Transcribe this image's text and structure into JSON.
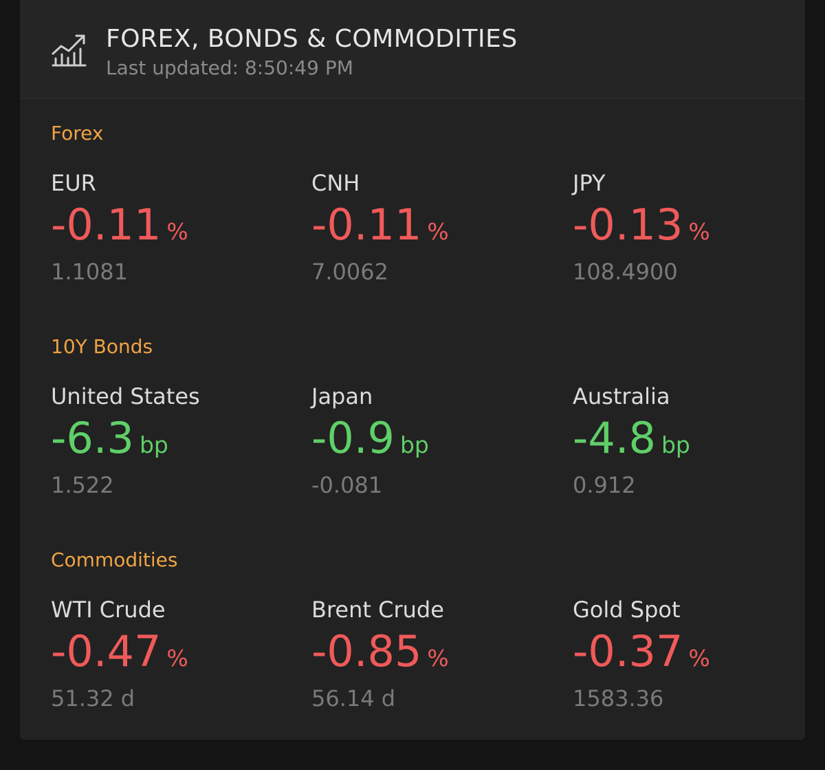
{
  "header": {
    "icon": "chart-growth-icon",
    "title": "FOREX, BONDS & COMMODITIES",
    "last_updated": "Last updated: 8:50:49 PM"
  },
  "colors": {
    "accent_section": "#f0a344",
    "negative": "#f05a5a",
    "positive": "#5fcf68",
    "card_bg": "#222222",
    "page_bg": "#141414"
  },
  "sections": [
    {
      "title": "Forex",
      "items": [
        {
          "name": "EUR",
          "change": "-0.11",
          "unit": "%",
          "price": "1.1081",
          "direction": "negative"
        },
        {
          "name": "CNH",
          "change": "-0.11",
          "unit": "%",
          "price": "7.0062",
          "direction": "negative"
        },
        {
          "name": "JPY",
          "change": "-0.13",
          "unit": "%",
          "price": "108.4900",
          "direction": "negative"
        }
      ]
    },
    {
      "title": "10Y Bonds",
      "items": [
        {
          "name": "United States",
          "change": "-6.3",
          "unit": "bp",
          "price": "1.522",
          "direction": "positive"
        },
        {
          "name": "Japan",
          "change": "-0.9",
          "unit": "bp",
          "price": "-0.081",
          "direction": "positive"
        },
        {
          "name": "Australia",
          "change": "-4.8",
          "unit": "bp",
          "price": "0.912",
          "direction": "positive"
        }
      ]
    },
    {
      "title": "Commodities",
      "items": [
        {
          "name": "WTI Crude",
          "change": "-0.47",
          "unit": "%",
          "price": "51.32 d",
          "direction": "negative"
        },
        {
          "name": "Brent Crude",
          "change": "-0.85",
          "unit": "%",
          "price": "56.14 d",
          "direction": "negative"
        },
        {
          "name": "Gold Spot",
          "change": "-0.37",
          "unit": "%",
          "price": "1583.36",
          "direction": "negative"
        }
      ]
    }
  ]
}
